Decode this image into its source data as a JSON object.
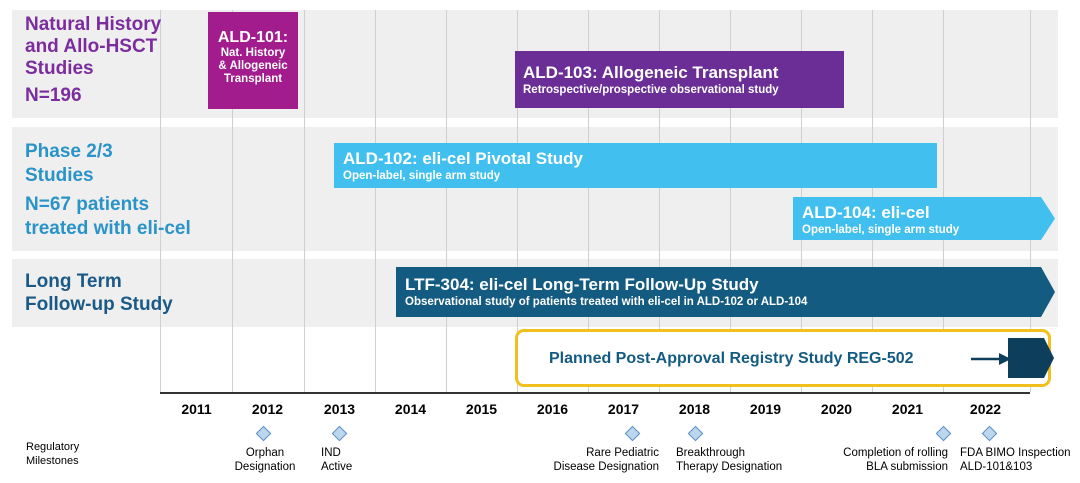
{
  "rows": {
    "natural_history": {
      "lines": [
        "Natural History",
        "and Allo-HSCT",
        "Studies"
      ],
      "n": "N=196",
      "color": "#7b2d9e"
    },
    "phase23": {
      "lines": [
        "Phase 2/3",
        "Studies"
      ],
      "n_lines": [
        "N=67 patients",
        "treated with eli-cel"
      ],
      "color": "#2a93c8"
    },
    "long_term": {
      "lines": [
        "Long Term",
        "Follow-up Study"
      ],
      "color": "#1b5a86"
    }
  },
  "studies": {
    "ald101": {
      "lines": [
        "ALD-101:",
        "Nat. History",
        "& Allogeneic",
        "Transplant"
      ],
      "color": "#a21c8e"
    },
    "ald103": {
      "title": "ALD-103: Allogeneic Transplant",
      "subtitle": "Retrospective/prospective observational study",
      "color": "#6a2e96"
    },
    "ald102": {
      "title": "ALD-102: eli-cel Pivotal Study",
      "subtitle": "Open-label, single arm study",
      "color": "#41c0f0"
    },
    "ald104": {
      "title": "ALD-104: eli-cel",
      "subtitle": "Open-label, single arm study",
      "color": "#41c0f0"
    },
    "ltf304": {
      "title": "LTF-304: eli-cel Long-Term Follow-Up Study",
      "subtitle": "Observational study of patients treated with eli-cel in ALD-102 or ALD-104",
      "color": "#145b82"
    },
    "reg502": {
      "title": "Planned Post-Approval Registry Study REG-502",
      "border_color": "#f2c01c",
      "arrow_color": "#0d3f5c"
    }
  },
  "years": [
    "2011",
    "2012",
    "2013",
    "2014",
    "2015",
    "2016",
    "2017",
    "2018",
    "2019",
    "2020",
    "2021",
    "2022"
  ],
  "milestones": {
    "header": [
      "Regulatory",
      "Milestones"
    ],
    "items": [
      {
        "lines": [
          "Orphan",
          "Designation"
        ]
      },
      {
        "lines": [
          "IND",
          "Active"
        ]
      },
      {
        "lines": [
          "Rare Pediatric",
          "Disease Designation"
        ]
      },
      {
        "lines": [
          "Breakthrough",
          "Therapy Designation"
        ]
      },
      {
        "lines": [
          "Completion of rolling",
          "BLA submission"
        ]
      },
      {
        "lines": [
          "FDA BIMO Inspection",
          "ALD-101&103"
        ]
      }
    ]
  }
}
